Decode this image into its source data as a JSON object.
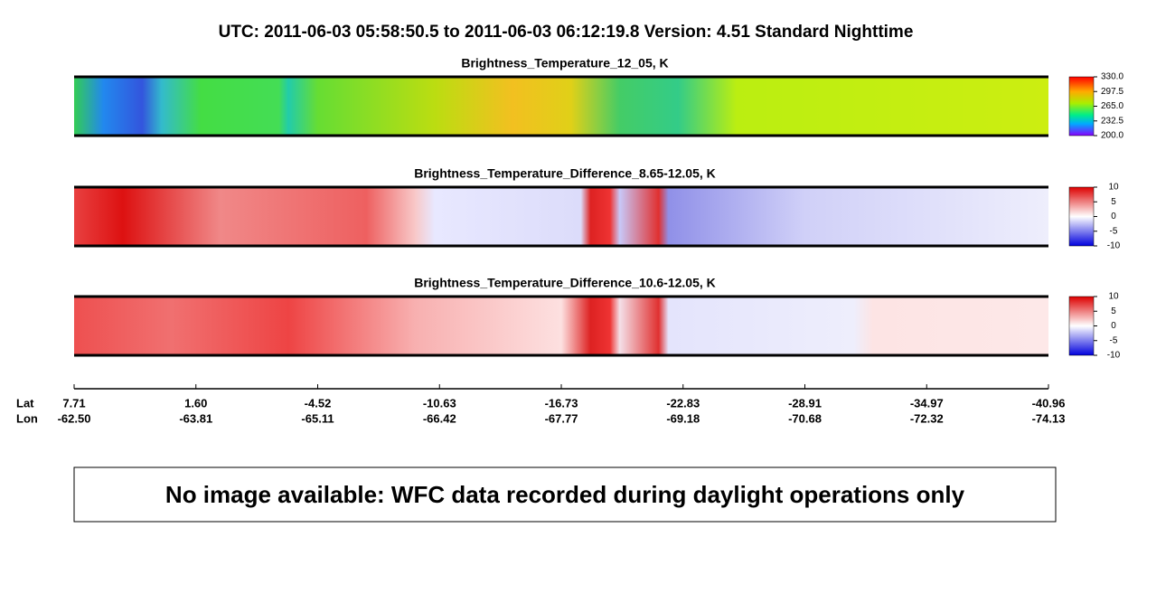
{
  "title": "UTC:  2011-06-03   05:58:50.5  to  2011-06-03   06:12:19.8    Version: 4.51  Standard Nighttime",
  "panels": [
    {
      "title": "Brightness_Temperature_12_05, K",
      "range": [
        200,
        330
      ],
      "ticks": [
        {
          "value": 330,
          "label": "330.0"
        },
        {
          "value": 297.5,
          "label": "297.5"
        },
        {
          "value": 265,
          "label": "265.0"
        },
        {
          "value": 232.5,
          "label": "232.5"
        },
        {
          "value": 200,
          "label": "200.0"
        }
      ]
    },
    {
      "title": "Brightness_Temperature_Difference_8.65-12.05, K",
      "range": [
        -10,
        10
      ],
      "ticks": [
        10,
        5,
        0,
        -5,
        -10
      ]
    },
    {
      "title": "Brightness_Temperature_Difference_10.6-12.05, K",
      "range": [
        -10,
        10
      ],
      "ticks": [
        10,
        5,
        0,
        -5,
        -10
      ]
    }
  ],
  "axis": {
    "lat_label": "Lat",
    "lon_label": "Lon",
    "lat": [
      "7.71",
      "1.60",
      "-4.52",
      "-10.63",
      "-16.73",
      "-22.83",
      "-28.91",
      "-34.97",
      "-40.96"
    ],
    "lon": [
      "-62.50",
      "-63.81",
      "-65.11",
      "-66.42",
      "-67.77",
      "-69.18",
      "-70.68",
      "-72.32",
      "-74.13"
    ]
  },
  "message": "No image available: WFC data recorded during daylight operations only"
}
